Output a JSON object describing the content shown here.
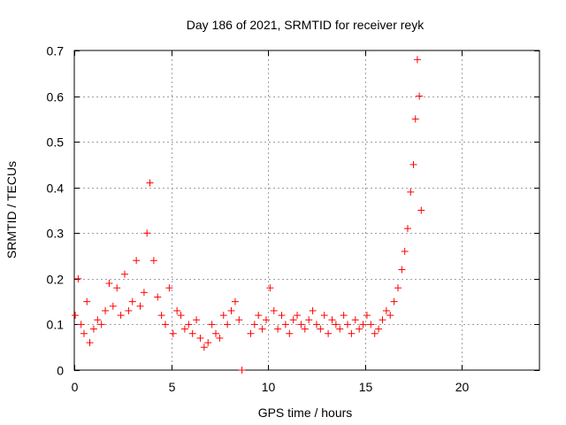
{
  "chart_data": {
    "type": "scatter",
    "title": "Day 186 of 2021, SRMTID for receiver reyk",
    "xlabel": "GPS time / hours",
    "ylabel": "SRMTID / TECUs",
    "xlim": [
      0,
      24
    ],
    "ylim": [
      0,
      0.7
    ],
    "xticks": [
      0,
      5,
      10,
      15,
      20
    ],
    "yticks": [
      0,
      0.1,
      0.2,
      0.3,
      0.4,
      0.5,
      0.6,
      0.7
    ],
    "grid": true,
    "legend": "none",
    "series": [
      {
        "name": "SRMTID",
        "marker": "+",
        "color": "#ff0000",
        "x": [
          0.05,
          0.2,
          0.35,
          0.5,
          0.65,
          0.8,
          1.0,
          1.2,
          1.4,
          1.6,
          1.8,
          2.0,
          2.2,
          2.4,
          2.6,
          2.8,
          3.0,
          3.2,
          3.4,
          3.6,
          3.75,
          3.9,
          4.1,
          4.3,
          4.5,
          4.7,
          4.9,
          5.1,
          5.3,
          5.5,
          5.7,
          5.9,
          6.1,
          6.3,
          6.5,
          6.7,
          6.9,
          7.1,
          7.3,
          7.5,
          7.7,
          7.9,
          8.1,
          8.3,
          8.5,
          8.65,
          9.1,
          9.3,
          9.5,
          9.7,
          9.9,
          10.1,
          10.3,
          10.5,
          10.7,
          10.9,
          11.1,
          11.3,
          11.5,
          11.7,
          11.9,
          12.1,
          12.3,
          12.5,
          12.7,
          12.9,
          13.1,
          13.3,
          13.5,
          13.7,
          13.9,
          14.1,
          14.3,
          14.5,
          14.7,
          14.9,
          15.1,
          15.3,
          15.5,
          15.7,
          15.9,
          16.1,
          16.3,
          16.5,
          16.7,
          16.9,
          17.05,
          17.2,
          17.35,
          17.5,
          17.6,
          17.7,
          17.8,
          17.9
        ],
        "y": [
          0.12,
          0.2,
          0.1,
          0.08,
          0.15,
          0.06,
          0.09,
          0.11,
          0.1,
          0.13,
          0.19,
          0.14,
          0.18,
          0.12,
          0.21,
          0.13,
          0.15,
          0.24,
          0.14,
          0.17,
          0.3,
          0.41,
          0.24,
          0.16,
          0.12,
          0.1,
          0.18,
          0.08,
          0.13,
          0.12,
          0.09,
          0.1,
          0.08,
          0.11,
          0.07,
          0.05,
          0.06,
          0.1,
          0.08,
          0.07,
          0.12,
          0.1,
          0.13,
          0.15,
          0.11,
          0.0,
          0.08,
          0.1,
          0.12,
          0.09,
          0.11,
          0.18,
          0.13,
          0.09,
          0.12,
          0.1,
          0.08,
          0.11,
          0.12,
          0.1,
          0.09,
          0.11,
          0.13,
          0.1,
          0.09,
          0.12,
          0.08,
          0.11,
          0.1,
          0.09,
          0.12,
          0.1,
          0.08,
          0.11,
          0.09,
          0.1,
          0.12,
          0.1,
          0.08,
          0.09,
          0.11,
          0.13,
          0.12,
          0.15,
          0.18,
          0.22,
          0.26,
          0.31,
          0.39,
          0.45,
          0.55,
          0.68,
          0.6,
          0.35
        ]
      }
    ]
  }
}
